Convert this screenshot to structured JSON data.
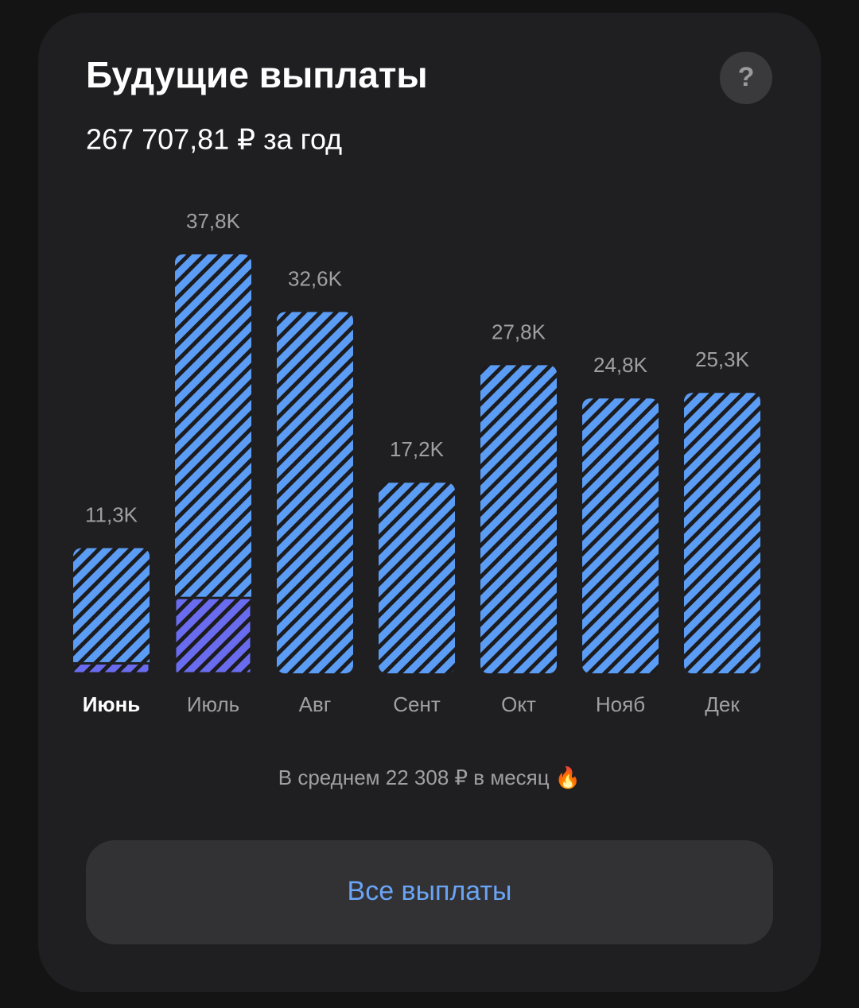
{
  "header": {
    "title": "Будущие выплаты",
    "subtitle": "267 707,81 ₽ за год",
    "help": "?"
  },
  "chart_data": {
    "type": "bar",
    "categories": [
      "Июнь",
      "Июль",
      "Авг",
      "Сент",
      "Окт",
      "Нояб",
      "Дек"
    ],
    "values": [
      11.3,
      37.8,
      32.6,
      17.2,
      27.8,
      24.8,
      25.3
    ],
    "value_labels": [
      "11,3K",
      "37,8K",
      "32,6K",
      "17,2K",
      "27,8K",
      "24,8K",
      "25,3K"
    ],
    "highlight_values": [
      0.9,
      6.8,
      null,
      null,
      null,
      null,
      null
    ],
    "color": "#5b9cf5",
    "highlight_color": "#6a6cf0",
    "selected_index": 0
  },
  "footer": {
    "average": "В среднем 22 308 ₽ в месяц 🔥",
    "button": "Все выплаты"
  }
}
